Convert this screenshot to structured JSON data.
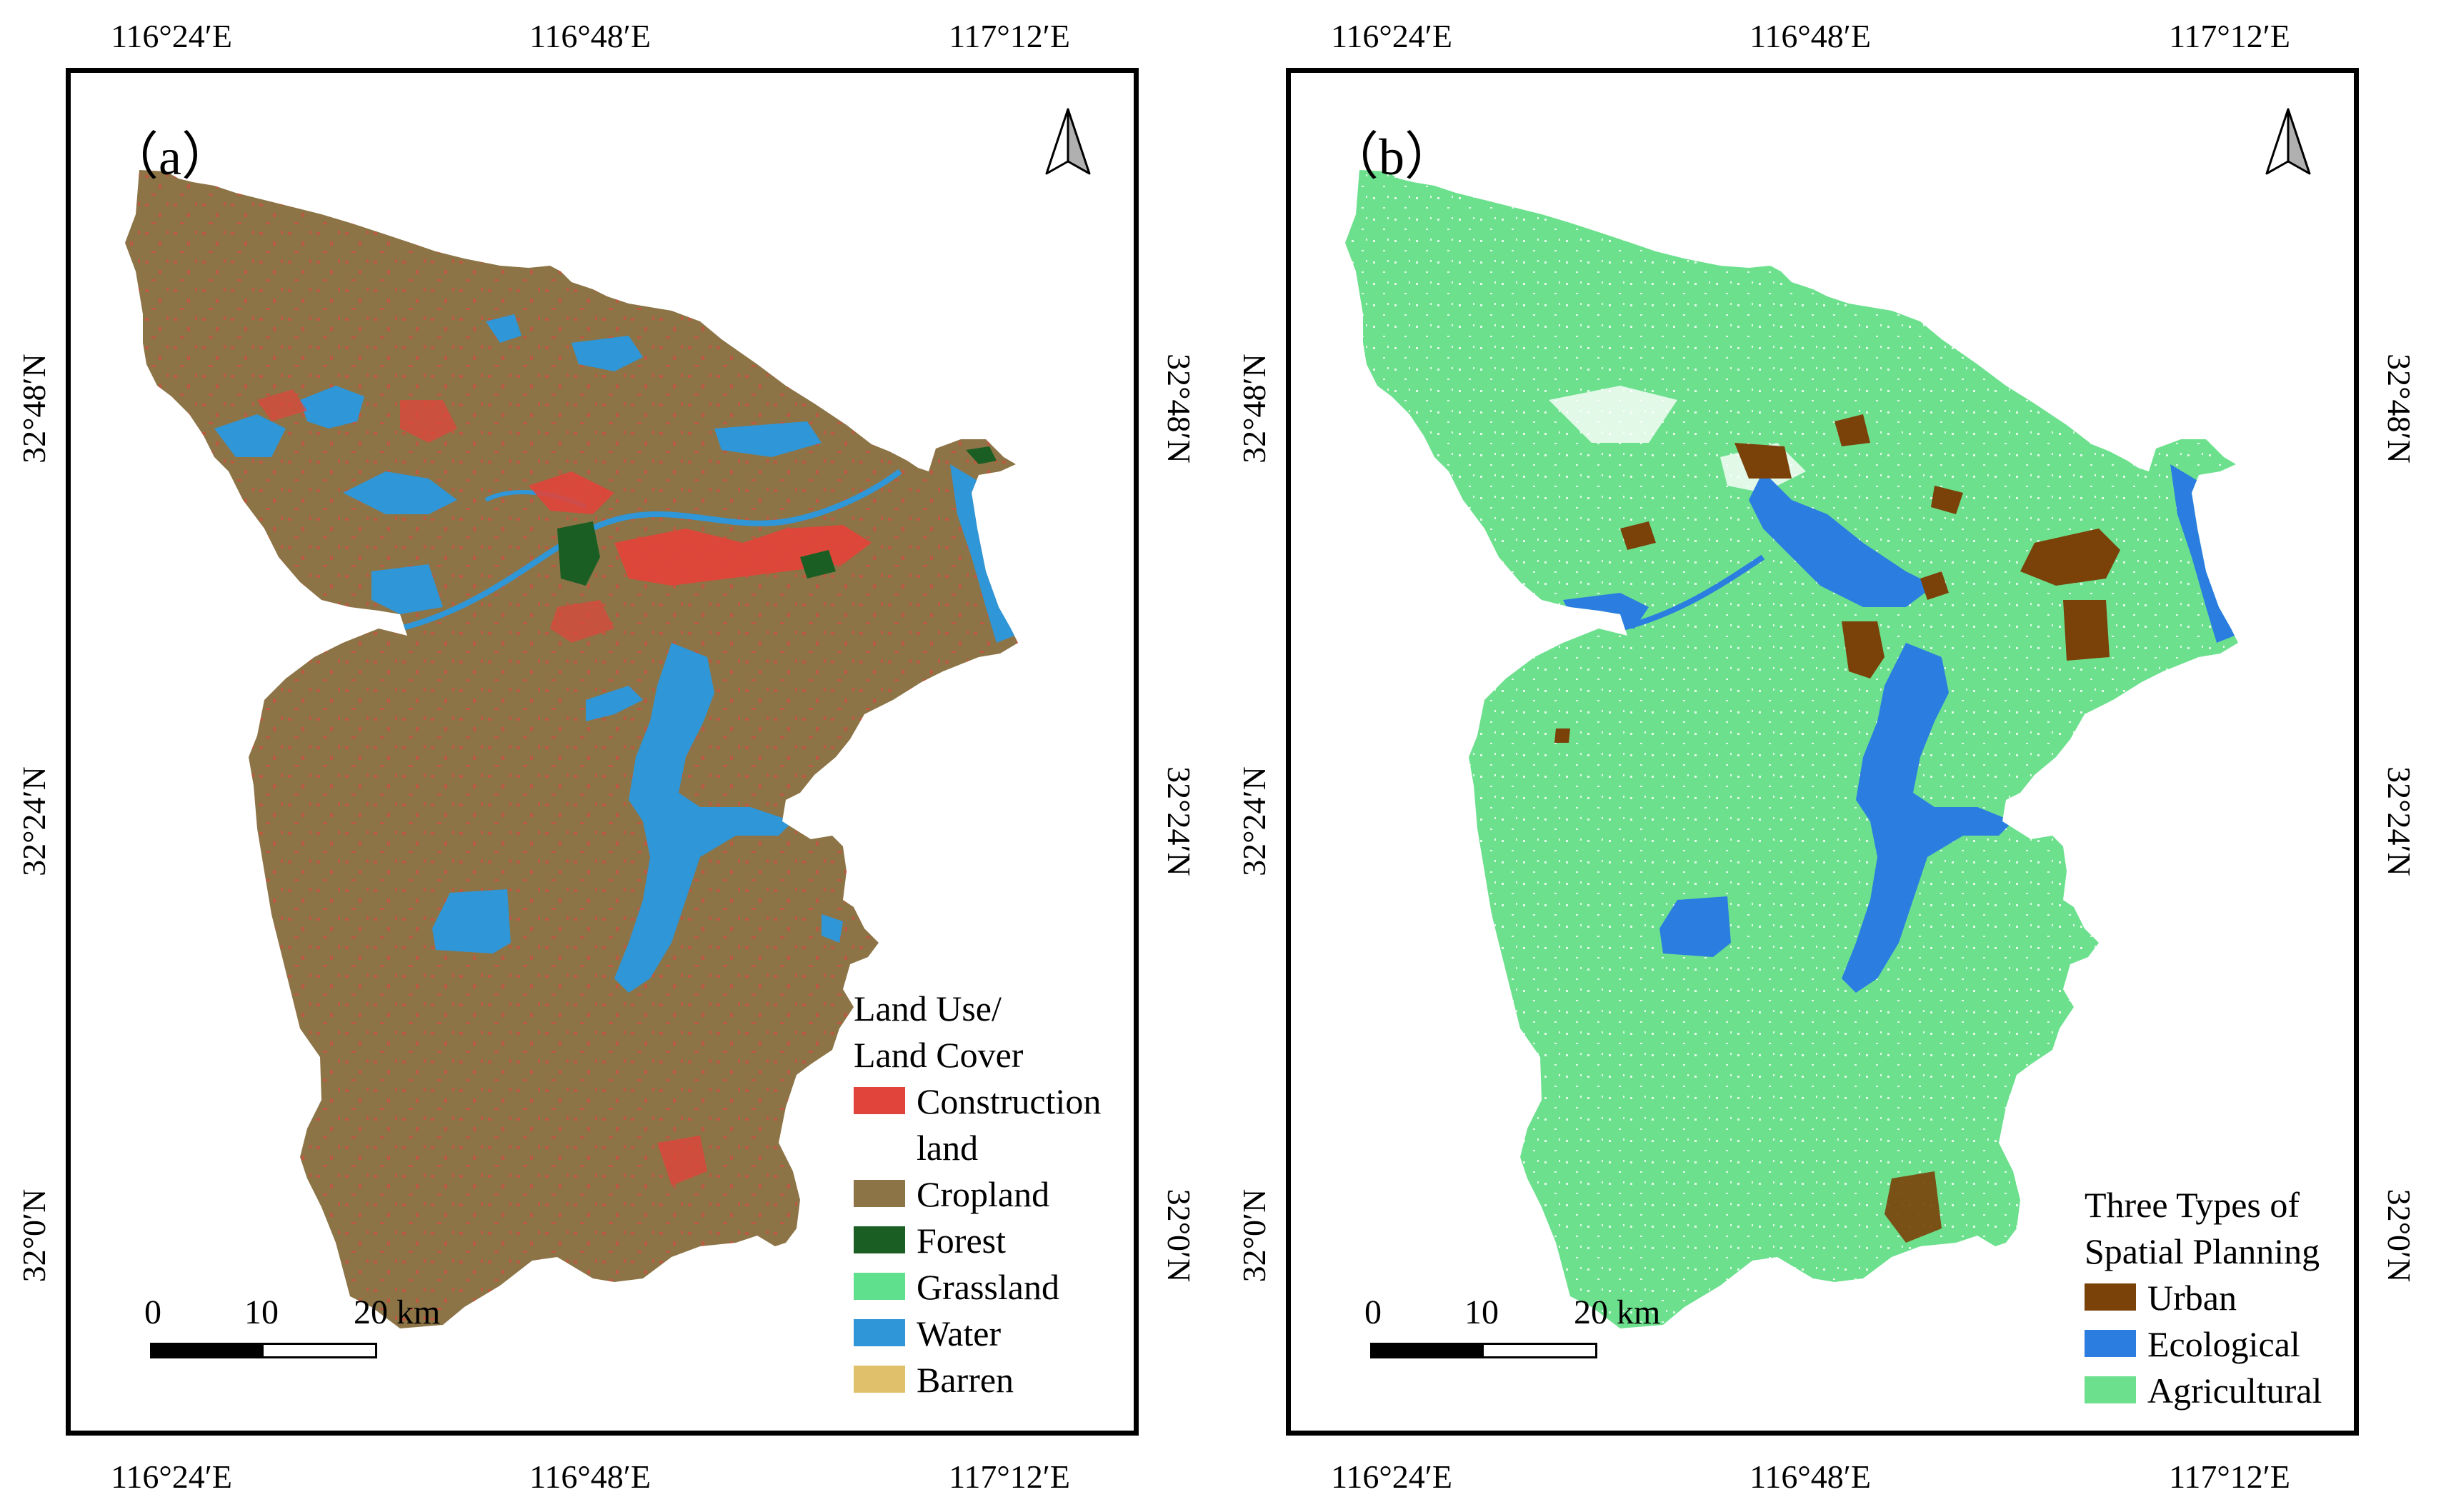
{
  "longitude_ticks": [
    "116°24′E",
    "116°48′E",
    "117°12′E"
  ],
  "latitude_ticks": [
    "32°48′N",
    "32°24′N",
    "32°0′N"
  ],
  "scale_bar": {
    "labels": [
      "0",
      "10",
      "20 km"
    ]
  },
  "map_a": {
    "panel_label": "（a）",
    "legend": {
      "title_line1": "Land Use/",
      "title_line2": "Land Cover",
      "items": [
        {
          "label_line1": "Construction",
          "label_line2": "land",
          "color": "#e0443a"
        },
        {
          "label": "Cropland",
          "color": "#8c7447"
        },
        {
          "label": "Forest",
          "color": "#1b5e24"
        },
        {
          "label": "Grassland",
          "color": "#5ee08c"
        },
        {
          "label": "Water",
          "color": "#2f96d8"
        },
        {
          "label": "Barren",
          "color": "#e0c06a"
        }
      ]
    }
  },
  "map_b": {
    "panel_label": "（b）",
    "legend": {
      "title_line1": "Three Types of",
      "title_line2": "Spatial Planning",
      "items": [
        {
          "label": "Urban",
          "color": "#7a4109"
        },
        {
          "label": "Ecological",
          "color": "#2b7de0"
        },
        {
          "label": "Agricultural",
          "color": "#6de08e"
        }
      ]
    }
  }
}
